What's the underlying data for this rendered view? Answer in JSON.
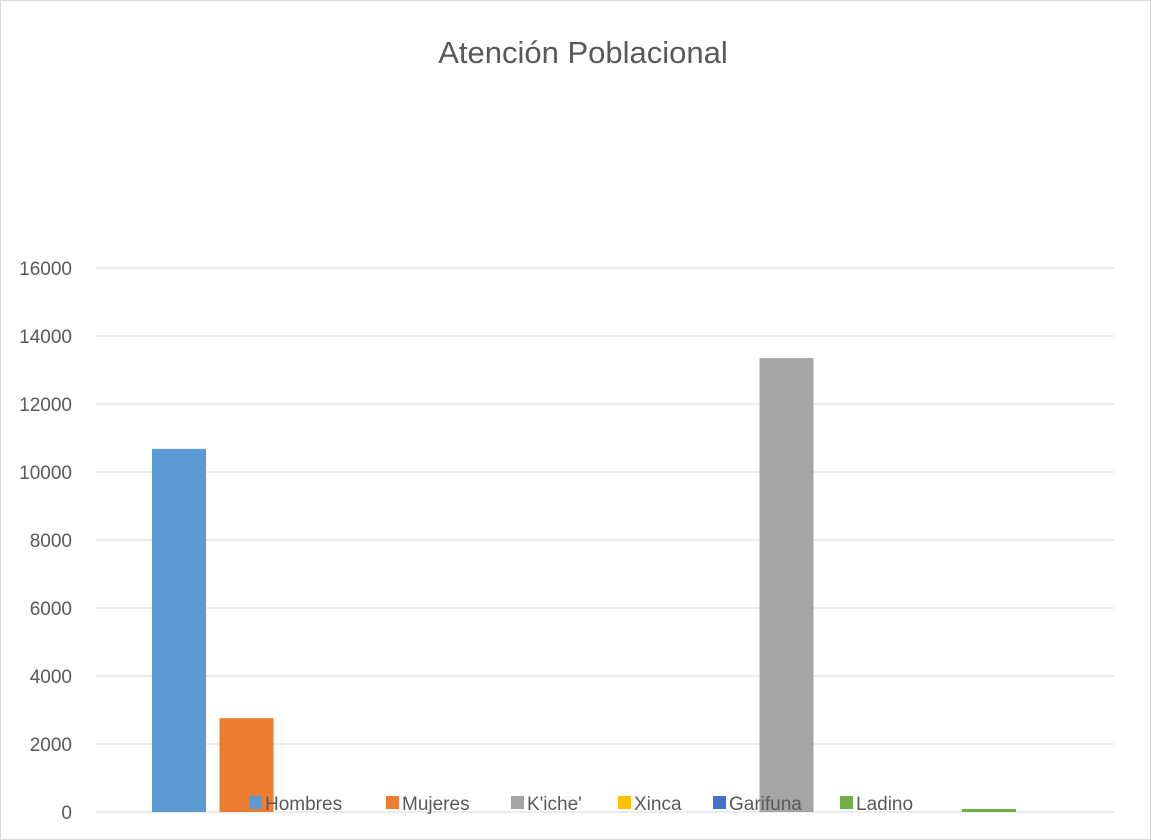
{
  "chart_data": {
    "type": "bar",
    "title": "Atención Poblacional",
    "xlabel": "",
    "ylabel": "",
    "ylim": [
      0,
      16000
    ],
    "y_ticks": [
      0,
      2000,
      4000,
      6000,
      8000,
      10000,
      12000,
      14000,
      16000
    ],
    "grid": true,
    "legend_position": "bottom",
    "categories": [
      ""
    ],
    "series": [
      {
        "name": "Hombres",
        "values": [
          10680
        ],
        "color": "#5b9bd5"
      },
      {
        "name": "Mujeres",
        "values": [
          2760
        ],
        "color": "#ed7d31"
      },
      {
        "name": "K'iche'",
        "values": [
          13350
        ],
        "color": "#a5a5a5"
      },
      {
        "name": "Xinca",
        "values": [
          0
        ],
        "color": "#ffc000"
      },
      {
        "name": "Garifuna",
        "values": [
          0
        ],
        "color": "#4472c4"
      },
      {
        "name": "Ladino",
        "values": [
          90
        ],
        "color": "#70ad47"
      }
    ],
    "bar_slots": [
      {
        "series_index": 0,
        "slot": 0
      },
      {
        "series_index": 1,
        "slot": 1
      },
      {
        "series_index": 2,
        "slot": 9
      },
      {
        "series_index": 5,
        "slot": 12
      }
    ]
  }
}
